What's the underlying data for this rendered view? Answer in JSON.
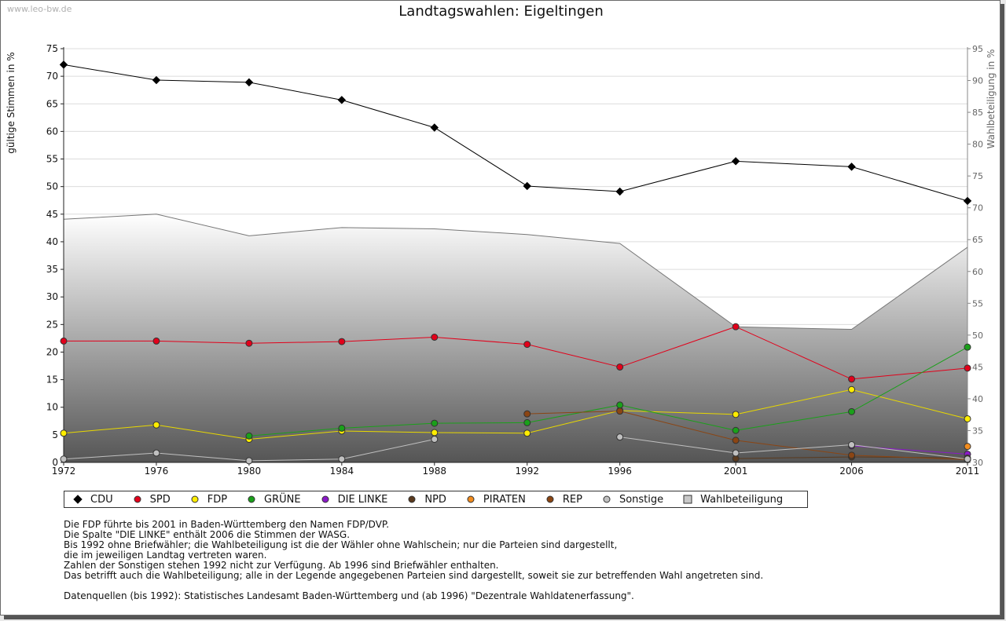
{
  "watermark": "www.leo-bw.de",
  "chart_data": {
    "type": "line",
    "title": "Landtagswahlen: Eigeltingen",
    "ylabel": "gültige Stimmen in %",
    "ylabel_right": "Wahlbeteiligung in %",
    "ylim": [
      0,
      75
    ],
    "ylim_right": [
      30,
      95
    ],
    "yticks": [
      0,
      5,
      10,
      15,
      20,
      25,
      30,
      35,
      40,
      45,
      50,
      55,
      60,
      65,
      70,
      75
    ],
    "yticks_right": [
      30,
      35,
      40,
      45,
      50,
      55,
      60,
      65,
      70,
      75,
      80,
      85,
      90,
      95
    ],
    "x": [
      1972,
      1976,
      1980,
      1984,
      1988,
      1992,
      1996,
      2001,
      2006,
      2011
    ],
    "series": [
      {
        "name": "CDU",
        "color": "#000000",
        "values": [
          72.1,
          69.3,
          68.9,
          65.7,
          60.7,
          50.1,
          49.1,
          54.6,
          53.6,
          47.4
        ]
      },
      {
        "name": "SPD",
        "color": "#e2001a",
        "values": [
          22.0,
          22.0,
          21.6,
          21.9,
          22.7,
          21.4,
          17.3,
          24.6,
          15.1,
          17.1
        ]
      },
      {
        "name": "FDP",
        "color": "#ffed00",
        "values": [
          5.3,
          6.8,
          4.2,
          5.7,
          5.4,
          5.3,
          9.4,
          8.7,
          13.2,
          7.9
        ]
      },
      {
        "name": "GRÜNE",
        "color": "#1aa01a",
        "values": [
          null,
          null,
          4.8,
          6.2,
          7.1,
          7.2,
          10.4,
          5.8,
          9.2,
          20.9
        ]
      },
      {
        "name": "DIE LINKE",
        "color": "#8b1ac8",
        "values": [
          null,
          null,
          null,
          null,
          null,
          null,
          null,
          null,
          3.0,
          1.5
        ]
      },
      {
        "name": "NPD",
        "color": "#5a3a1e",
        "values": [
          null,
          null,
          null,
          null,
          null,
          null,
          null,
          0.7,
          1.0,
          0.8
        ]
      },
      {
        "name": "PIRATEN",
        "color": "#f28c1e",
        "values": [
          null,
          null,
          null,
          null,
          null,
          null,
          null,
          null,
          null,
          2.9
        ]
      },
      {
        "name": "REP",
        "color": "#8b4513",
        "values": [
          null,
          null,
          null,
          null,
          null,
          8.8,
          9.3,
          4.0,
          1.3,
          0.5
        ]
      },
      {
        "name": "Sonstige",
        "color": "#c0c0c0",
        "values": [
          0.6,
          1.7,
          0.3,
          0.6,
          4.2,
          null,
          4.6,
          1.7,
          3.2,
          0.6
        ]
      }
    ],
    "turnout": {
      "name": "Wahlbeteiligung",
      "axis": "right",
      "values": [
        68.2,
        69.0,
        65.6,
        66.9,
        66.7,
        65.8,
        64.4,
        51.3,
        50.9,
        63.8
      ]
    }
  },
  "notes": [
    "Die FDP führte bis 2001 in Baden-Württemberg den Namen FDP/DVP.",
    "Die Spalte \"DIE LINKE\" enthält 2006 die Stimmen der WASG.",
    "Bis 1992 ohne Briefwähler; die Wahlbeteiligung ist die der Wähler ohne Wahlschein; nur die Parteien sind dargestellt,",
    "die im jeweiligen Landtag vertreten waren.",
    "Zahlen der Sonstigen stehen 1992 nicht zur Verfügung. Ab 1996 sind Briefwähler enthalten.",
    "Das betrifft auch die Wahlbeteiligung; alle in der Legende angegebenen Parteien sind dargestellt, soweit sie zur betreffenden Wahl angetreten sind.",
    "",
    "Datenquellen (bis 1992): Statistisches Landesamt Baden-Württemberg und (ab 1996) \"Dezentrale Wahldatenerfassung\"."
  ]
}
